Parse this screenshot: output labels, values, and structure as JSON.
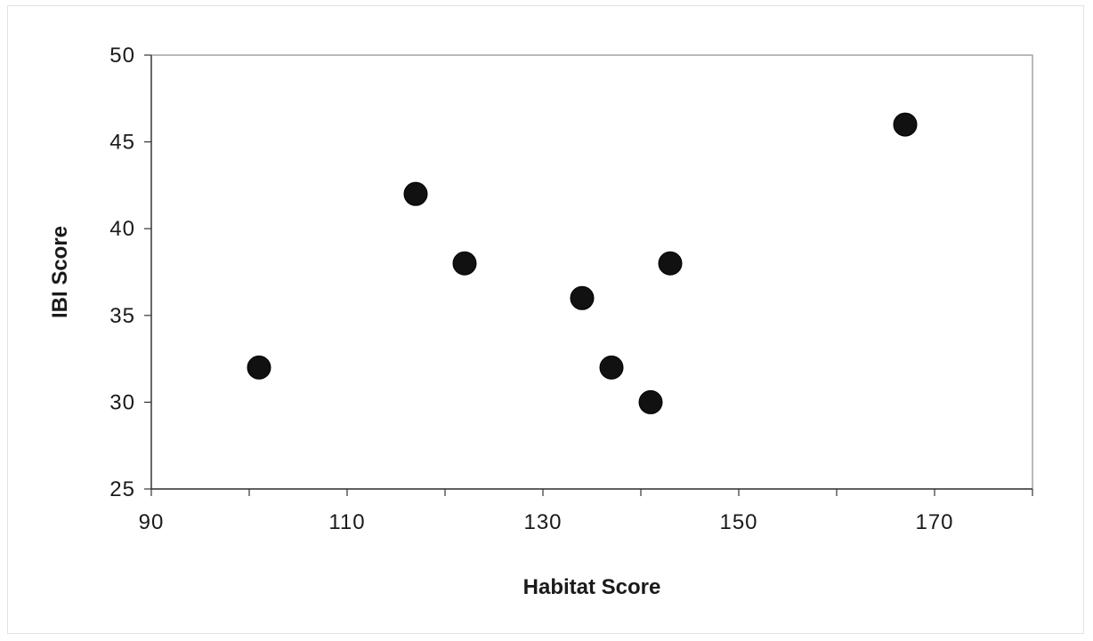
{
  "chart_data": {
    "type": "scatter",
    "title": "",
    "xlabel": "Habitat Score",
    "ylabel": "IBI Score",
    "xlim": [
      90,
      180
    ],
    "ylim": [
      25,
      50
    ],
    "xticks": [
      90,
      110,
      130,
      150,
      170
    ],
    "xtick_marks": [
      90,
      100,
      110,
      120,
      130,
      140,
      150,
      160,
      170,
      180
    ],
    "yticks": [
      25,
      30,
      35,
      40,
      45,
      50
    ],
    "grid": false,
    "legend": "none",
    "marker_color": "#111111",
    "series": [
      {
        "x": [
          101,
          117,
          122,
          134,
          137,
          141,
          143,
          167
        ],
        "y": [
          32,
          42,
          38,
          36,
          32,
          30,
          38,
          46
        ]
      }
    ]
  }
}
